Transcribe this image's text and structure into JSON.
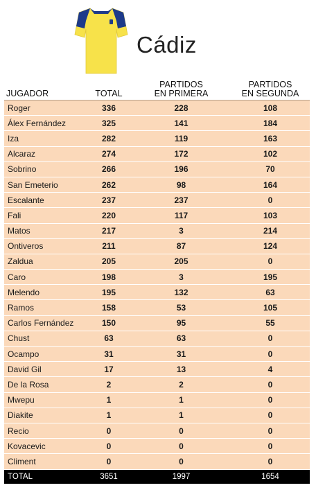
{
  "team": {
    "name": "Cádiz",
    "jersey_icon": "yellow-football-jersey-icon",
    "colors": {
      "shirt": "#f7e24a",
      "trim": "#1d3a8a"
    }
  },
  "table": {
    "headers": {
      "player": "JUGADOR",
      "total": "TOTAL",
      "primera_l1": "PARTIDOS",
      "primera_l2": "EN PRIMERA",
      "segunda_l1": "PARTIDOS",
      "segunda_l2": "EN SEGUNDA"
    },
    "rows": [
      {
        "player": "Roger",
        "total": "336",
        "primera": "228",
        "segunda": "108"
      },
      {
        "player": "Álex Fernández",
        "total": "325",
        "primera": "141",
        "segunda": "184"
      },
      {
        "player": "Iza",
        "total": "282",
        "primera": "119",
        "segunda": "163"
      },
      {
        "player": "Alcaraz",
        "total": "274",
        "primera": "172",
        "segunda": "102"
      },
      {
        "player": "Sobrino",
        "total": "266",
        "primera": "196",
        "segunda": "70"
      },
      {
        "player": "San Emeterio",
        "total": "262",
        "primera": "98",
        "segunda": "164"
      },
      {
        "player": "Escalante",
        "total": "237",
        "primera": "237",
        "segunda": "0"
      },
      {
        "player": "Fali",
        "total": "220",
        "primera": "117",
        "segunda": "103"
      },
      {
        "player": "Matos",
        "total": "217",
        "primera": "3",
        "segunda": "214"
      },
      {
        "player": "Ontiveros",
        "total": "211",
        "primera": "87",
        "segunda": "124"
      },
      {
        "player": "Zaldua",
        "total": "205",
        "primera": "205",
        "segunda": "0"
      },
      {
        "player": "Caro",
        "total": "198",
        "primera": "3",
        "segunda": "195"
      },
      {
        "player": "Melendo",
        "total": "195",
        "primera": "132",
        "segunda": "63"
      },
      {
        "player": "Ramos",
        "total": "158",
        "primera": "53",
        "segunda": "105"
      },
      {
        "player": "Carlos Fernández",
        "total": "150",
        "primera": "95",
        "segunda": "55"
      },
      {
        "player": "Chust",
        "total": "63",
        "primera": "63",
        "segunda": "0"
      },
      {
        "player": "Ocampo",
        "total": "31",
        "primera": "31",
        "segunda": "0"
      },
      {
        "player": "David Gil",
        "total": "17",
        "primera": "13",
        "segunda": "4"
      },
      {
        "player": "De la Rosa",
        "total": "2",
        "primera": "2",
        "segunda": "0"
      },
      {
        "player": "Mwepu",
        "total": "1",
        "primera": "1",
        "segunda": "0"
      },
      {
        "player": "Diakite",
        "total": "1",
        "primera": "1",
        "segunda": "0"
      },
      {
        "player": "Recio",
        "total": "0",
        "primera": "0",
        "segunda": "0"
      },
      {
        "player": "Kovacevic",
        "total": "0",
        "primera": "0",
        "segunda": "0"
      },
      {
        "player": "Climent",
        "total": "0",
        "primera": "0",
        "segunda": "0"
      }
    ],
    "totals": {
      "label": "TOTAL",
      "total": "3651",
      "primera": "1997",
      "segunda": "1654"
    }
  }
}
